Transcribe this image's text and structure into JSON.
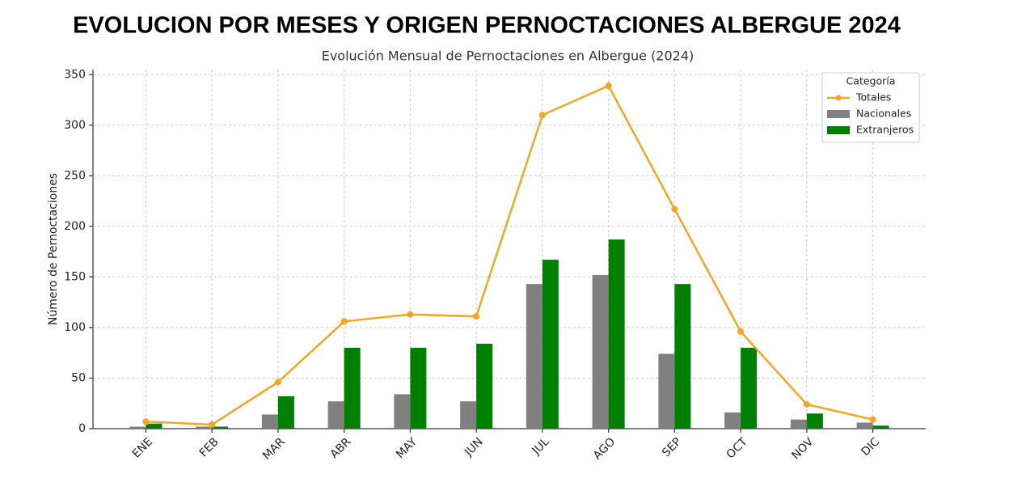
{
  "chart_data": {
    "type": "bar",
    "title": "EVOLUCION POR MESES Y ORIGEN   PERNOCTACIONES ALBERGUE 2024",
    "subtitle": "Evolución Mensual de Pernoctaciones en Albergue (2024)",
    "y_label": "Número de Pernoctaciones",
    "categories": [
      "ENE",
      "FEB",
      "MAR",
      "ABR",
      "MAY",
      "JUN",
      "JUL",
      "AGO",
      "SEP",
      "OCT",
      "NOV",
      "DIC"
    ],
    "series": [
      {
        "name": "Totales",
        "type": "line",
        "color": "#f2a622",
        "values": [
          7,
          4,
          46,
          106,
          113,
          111,
          310,
          339,
          217,
          96,
          24,
          9
        ]
      },
      {
        "name": "Nacionales",
        "type": "bar",
        "color": "#808080",
        "values": [
          2,
          2,
          14,
          27,
          34,
          27,
          143,
          152,
          74,
          16,
          9,
          6
        ]
      },
      {
        "name": "Extranjeros",
        "type": "bar",
        "color": "#008000",
        "values": [
          5,
          2,
          32,
          80,
          80,
          84,
          167,
          187,
          143,
          80,
          15,
          3
        ]
      }
    ],
    "ylim": [
      0,
      355
    ],
    "yticks": [
      0,
      50,
      100,
      150,
      200,
      250,
      300,
      350
    ],
    "grid": true,
    "legend_title": "Categoría",
    "legend_position": "upper right"
  }
}
